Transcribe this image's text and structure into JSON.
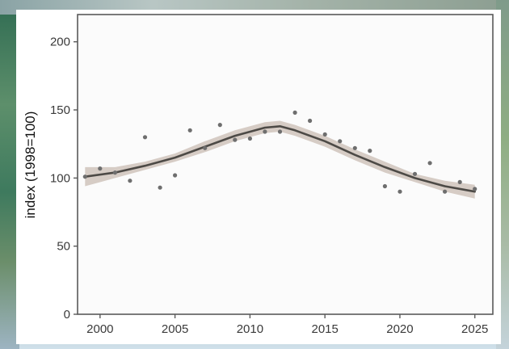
{
  "chart_data": {
    "type": "scatter",
    "title": "",
    "xlabel": "",
    "ylabel": "index (1998=100)",
    "xlim": [
      1998.5,
      2026.2
    ],
    "ylim": [
      0,
      220
    ],
    "x_ticks": [
      2000,
      2005,
      2010,
      2015,
      2020,
      2025
    ],
    "y_ticks": [
      0,
      50,
      100,
      150,
      200
    ],
    "grid": false,
    "points": {
      "x": [
        1999,
        2000,
        2001,
        2002,
        2003,
        2004,
        2005,
        2006,
        2007,
        2008,
        2009,
        2010,
        2011,
        2012,
        2013,
        2014,
        2015,
        2016,
        2017,
        2018,
        2019,
        2020,
        2021,
        2022,
        2023,
        2024,
        2025
      ],
      "y": [
        101,
        107,
        104,
        98,
        130,
        93,
        102,
        135,
        122,
        139,
        128,
        129,
        134,
        134,
        148,
        142,
        132,
        127,
        122,
        120,
        94,
        90,
        103,
        111,
        90,
        97,
        92
      ]
    },
    "smooth": {
      "x": [
        1999,
        2001,
        2003,
        2005,
        2007,
        2009,
        2011,
        2012,
        2013,
        2015,
        2017,
        2019,
        2021,
        2023,
        2025
      ],
      "y": [
        101,
        104,
        109,
        115,
        123,
        131,
        137,
        138,
        135,
        127,
        117,
        108,
        100,
        94,
        90
      ],
      "lower": [
        94,
        100,
        106,
        112,
        119,
        127,
        133,
        134,
        131,
        123,
        113,
        104,
        97,
        90,
        85
      ],
      "upper": [
        108,
        108,
        112,
        118,
        127,
        135,
        141,
        142,
        139,
        131,
        121,
        112,
        103,
        98,
        95
      ]
    },
    "colors": {
      "points": "#6e6e6e",
      "line": "#4d4a46",
      "ribbon": "#c9bcb3",
      "axis": "#5a5a5a",
      "plot_background": "#fbfbfb"
    }
  }
}
